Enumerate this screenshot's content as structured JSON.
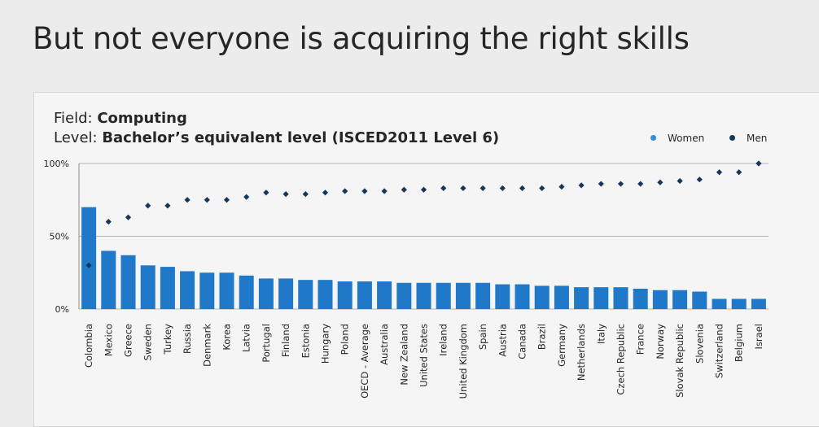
{
  "title": "But not everyone is acquiring the right skills",
  "subtitle": {
    "field_prefix": "Field: ",
    "field_value": "Computing",
    "level_prefix": "Level: ",
    "level_value": "Bachelor’s equivalent level (ISCED2011 Level 6)"
  },
  "colors": {
    "women": "#1f78c8",
    "men": "#16375a",
    "women_legend": "#2a8fe0",
    "grid": "#b3b3b3"
  },
  "legend": {
    "women": "Women",
    "men": "Men"
  },
  "chart_data": {
    "type": "bar",
    "title": "",
    "xlabel": "",
    "ylabel": "",
    "ylim": [
      0,
      100
    ],
    "yticks": [
      "0%",
      "50%",
      "100%"
    ],
    "grid": true,
    "legend_position": "top-right",
    "categories": [
      "Colombia",
      "Mexico",
      "Greece",
      "Sweden",
      "Turkey",
      "Russia",
      "Denmark",
      "Korea",
      "Latvia",
      "Portugal",
      "Finland",
      "Estonia",
      "Hungary",
      "Poland",
      "OECD - Average",
      "Australia",
      "New Zealand",
      "United States",
      "Ireland",
      "United Kingdom",
      "Spain",
      "Austria",
      "Canada",
      "Brazil",
      "Germany",
      "Netherlands",
      "Italy",
      "Czech Republic",
      "France",
      "Norway",
      "Slovak Republic",
      "Slovenia",
      "Switzerland",
      "Belgium",
      "Israel"
    ],
    "series": [
      {
        "name": "Women",
        "mark": "bar",
        "values": [
          70,
          40,
          37,
          30,
          29,
          26,
          25,
          25,
          23,
          21,
          21,
          20,
          20,
          19,
          19,
          19,
          18,
          18,
          18,
          18,
          18,
          17,
          17,
          16,
          16,
          15,
          15,
          15,
          14,
          13,
          13,
          12,
          7,
          7,
          7
        ]
      },
      {
        "name": "Men",
        "mark": "point",
        "values": [
          30,
          60,
          63,
          71,
          71,
          75,
          75,
          75,
          77,
          80,
          79,
          79,
          80,
          81,
          81,
          81,
          82,
          82,
          83,
          83,
          83,
          83,
          83,
          83,
          84,
          85,
          86,
          86,
          86,
          87,
          88,
          89,
          94,
          94,
          100
        ]
      }
    ]
  }
}
